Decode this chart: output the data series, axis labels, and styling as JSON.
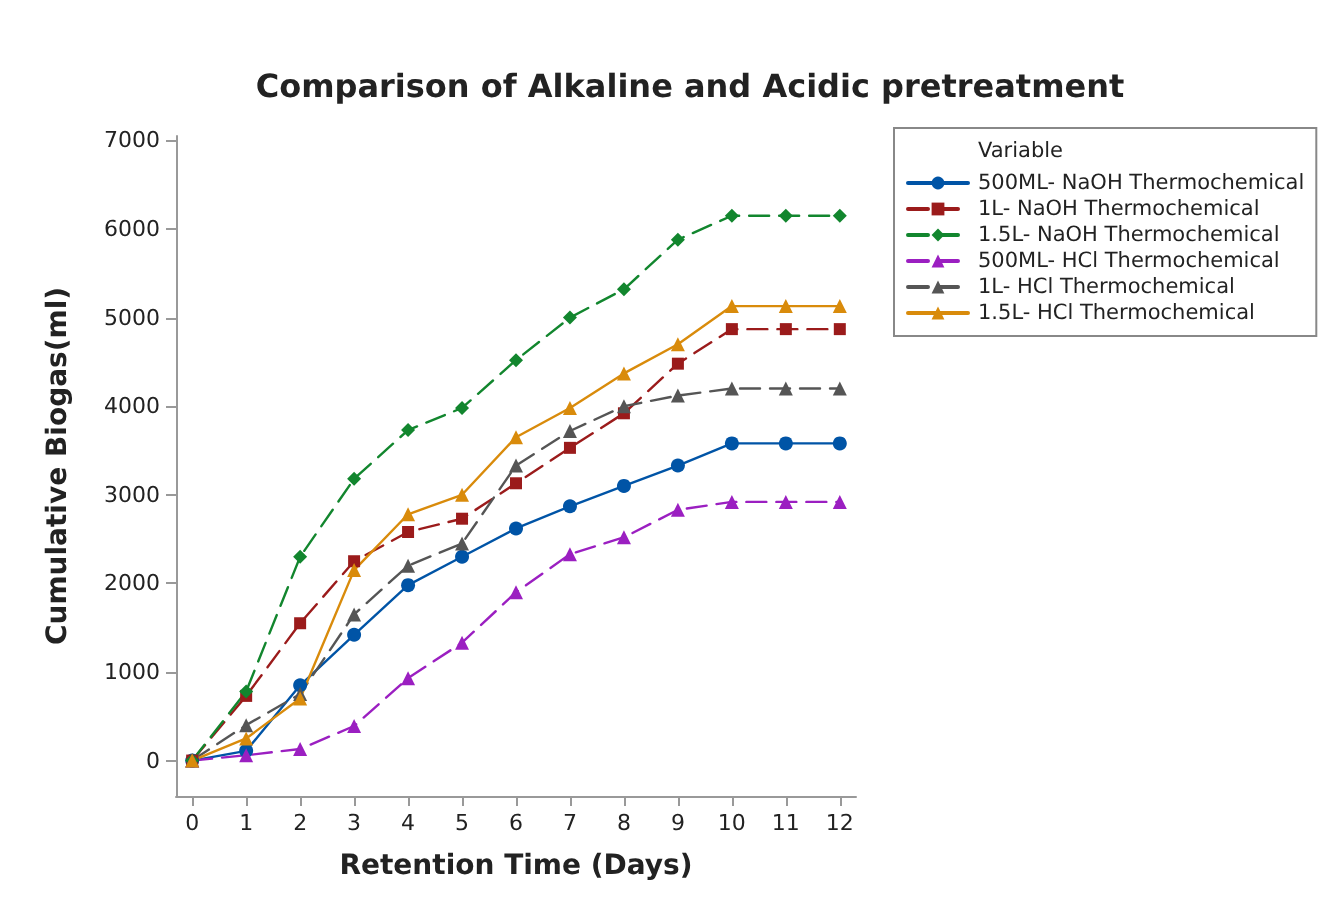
{
  "chart_data": {
    "type": "line",
    "title": "Comparison of Alkaline and Acidic pretreatment",
    "xlabel": "Retention Time (Days)",
    "ylabel": "Cumulative Biogas(ml)",
    "legend_title": "Variable",
    "legend": "right",
    "grid": false,
    "x": [
      0,
      1,
      2,
      3,
      4,
      5,
      6,
      7,
      8,
      9,
      10,
      11,
      12
    ],
    "xlim": [
      -0.3,
      12.3
    ],
    "xticks": [
      0,
      1,
      2,
      3,
      4,
      5,
      6,
      7,
      8,
      9,
      10,
      11,
      12
    ],
    "ylim": [
      -400,
      7050
    ],
    "yticks": [
      0,
      1000,
      2000,
      3000,
      4000,
      5000,
      6000,
      7000
    ],
    "series": [
      {
        "name": "500ML- NaOH Thermochemical",
        "color": "#0054a6",
        "marker": "circle",
        "line_style": "solid",
        "values": [
          0,
          110,
          850,
          1420,
          1980,
          2300,
          2620,
          2870,
          3100,
          3330,
          3580,
          3580,
          3580
        ]
      },
      {
        "name": "1L- NaOH Thermochemical",
        "color": "#9b1b1b",
        "marker": "square",
        "line_style": "dashed",
        "values": [
          0,
          730,
          1550,
          2250,
          2580,
          2730,
          3130,
          3530,
          3920,
          4480,
          4870,
          4870,
          4870
        ]
      },
      {
        "name": "1.5L- NaOH Thermochemical",
        "color": "#12862e",
        "marker": "diamond",
        "line_style": "dashed",
        "values": [
          0,
          780,
          2300,
          3180,
          3730,
          3980,
          4520,
          5000,
          5320,
          5880,
          6150,
          6150,
          6150
        ]
      },
      {
        "name": "500ML- HCl Thermochemical",
        "color": "#9b1fc1",
        "marker": "triangle",
        "line_style": "dashed",
        "values": [
          0,
          60,
          130,
          390,
          930,
          1330,
          1900,
          2330,
          2520,
          2830,
          2920,
          2920,
          2920
        ]
      },
      {
        "name": "1L- HCl Thermochemical",
        "color": "#555555",
        "marker": "triangle",
        "line_style": "dashed",
        "values": [
          0,
          400,
          750,
          1650,
          2200,
          2450,
          3330,
          3720,
          4000,
          4120,
          4200,
          4200,
          4200
        ]
      },
      {
        "name": "1.5L- HCl Thermochemical",
        "color": "#d98b0b",
        "marker": "triangle",
        "line_style": "solid",
        "values": [
          0,
          250,
          700,
          2150,
          2780,
          3000,
          3650,
          3980,
          4370,
          4700,
          5130,
          5130,
          5130
        ]
      }
    ]
  }
}
